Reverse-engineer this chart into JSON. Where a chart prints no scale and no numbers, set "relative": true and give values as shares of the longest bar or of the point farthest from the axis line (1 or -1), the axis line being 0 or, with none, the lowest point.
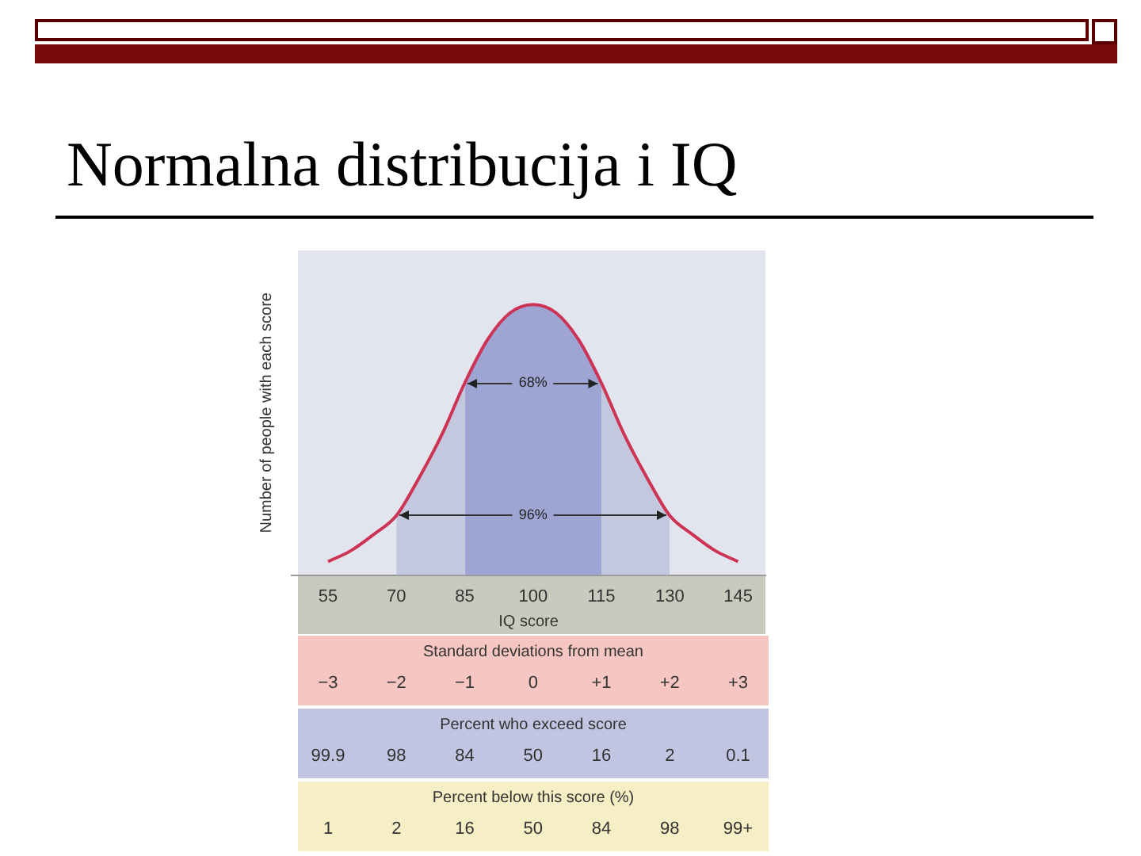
{
  "chart_data": {
    "type": "line",
    "title": "Normalna distribucija i IQ",
    "relative": true,
    "xlabel": "IQ score",
    "ylabel": "Number of people with each score",
    "x": [
      55,
      60,
      65,
      70,
      75,
      80,
      85,
      90,
      95,
      100,
      105,
      110,
      115,
      120,
      125,
      130,
      135,
      140,
      145
    ],
    "series": [
      {
        "type": "area",
        "color": "#c4c8de",
        "x": [
          70,
          75,
          80,
          85,
          90,
          95,
          100,
          105,
          110,
          115,
          120,
          125,
          130
        ],
        "values": [
          0.22,
          0.36,
          0.52,
          0.71,
          null,
          null,
          null,
          null,
          null,
          0.71,
          0.52,
          0.36,
          0.22
        ]
      },
      {
        "type": "area",
        "color": "#9fa5d3",
        "x": [
          85,
          90,
          95,
          100,
          105,
          110,
          115
        ],
        "values": [
          0.71,
          0.87,
          0.97,
          1,
          0.97,
          0.87,
          0.71
        ]
      },
      {
        "color": "#cc3355",
        "values": [
          0.05,
          0.09,
          0.15,
          0.22,
          0.36,
          0.52,
          0.71,
          0.87,
          0.97,
          1,
          0.97,
          0.87,
          0.71,
          0.52,
          0.36,
          0.22,
          0.15,
          0.09,
          0.05
        ]
      }
    ],
    "xlim": [
      47,
      151
    ],
    "xticks": [
      55,
      70,
      85,
      100,
      115,
      130,
      145
    ],
    "annotations": [
      "96%",
      "68%",
      "Standard deviations from mean",
      "−3 −2 −1 0 +1 +2 +3",
      "Percent who exceed score",
      "99.9 98 84 50 16 2 0.1",
      "Percent below this score (%)",
      "1 2 16 50 84 98 99+"
    ],
    "grid": false,
    "legend": false,
    "marker": "none",
    "line_style": "solid"
  }
}
